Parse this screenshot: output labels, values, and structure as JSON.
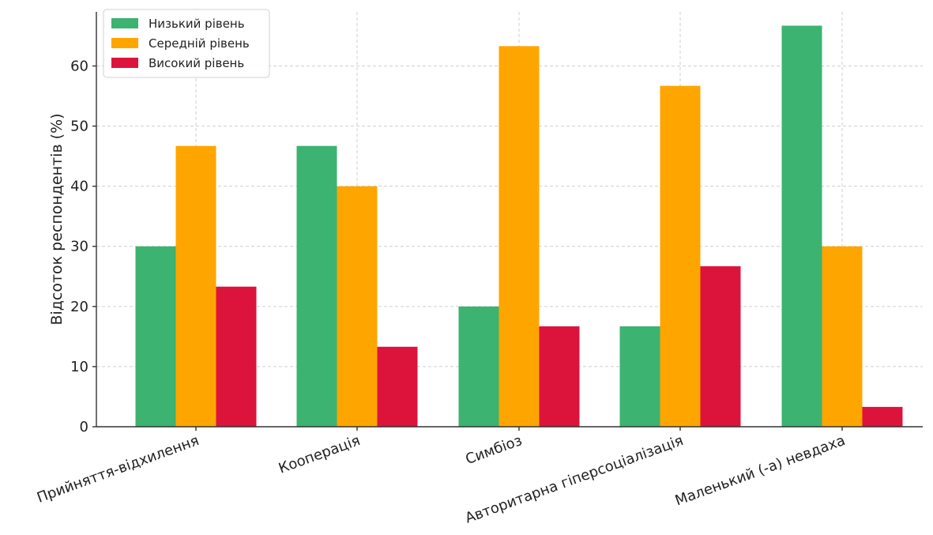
{
  "chart_data": {
    "type": "bar",
    "categories": [
      "Прийняття-відхилення",
      "Кооперація",
      "Симбіоз",
      "Авторитарна гіперсоціалізація",
      "Маленький (-а) невдаха"
    ],
    "series": [
      {
        "name": "Низький рівень",
        "color": "#3cb371",
        "values": [
          30,
          46.7,
          20,
          16.7,
          66.7
        ]
      },
      {
        "name": "Середній рівень",
        "color": "#ffa500",
        "values": [
          46.7,
          40,
          63.3,
          56.7,
          30
        ]
      },
      {
        "name": "Високий рівень",
        "color": "#dc143c",
        "values": [
          23.3,
          13.3,
          16.7,
          26.7,
          3.3
        ]
      }
    ],
    "title": "",
    "xlabel": "",
    "ylabel": "Відсоток респондентів (%)",
    "ylim": [
      0,
      69
    ],
    "yticks": [
      0,
      10,
      20,
      30,
      40,
      50,
      60
    ],
    "grid": true,
    "legend_position": "top-left"
  }
}
